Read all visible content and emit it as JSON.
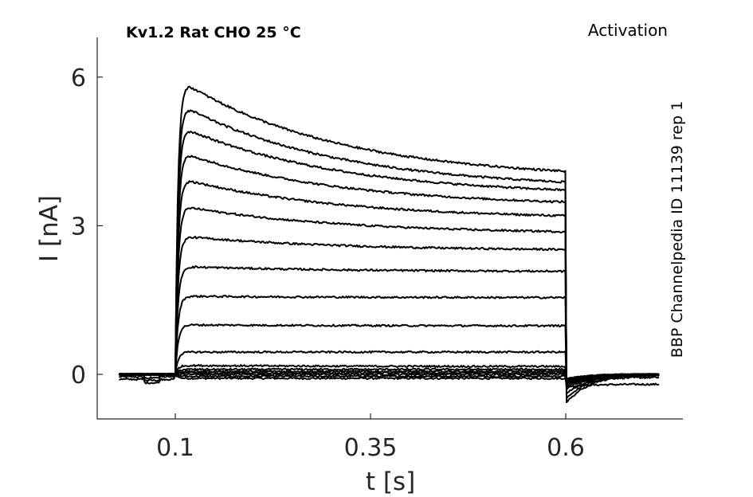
{
  "chart_data": {
    "type": "line",
    "title": "Kv1.2  Rat  CHO  25 °C",
    "annotation": "Activation",
    "side_label": "BBP Channelpedia ID 11139 rep 1",
    "xlabel": "t [s]",
    "ylabel": "I [nA]",
    "xlim": [
      0.0,
      0.75
    ],
    "ylim": [
      -0.9,
      6.8
    ],
    "x_ticks": [
      0.1,
      0.35,
      0.6
    ],
    "x_tick_labels": [
      "0.1",
      "0.35",
      "0.6"
    ],
    "y_ticks": [
      0,
      3,
      6
    ],
    "y_tick_labels": [
      "0",
      "3",
      "6"
    ],
    "grid": false,
    "pulse_start_s": 0.1,
    "pulse_end_s": 0.6,
    "sweep_end_s": 0.72,
    "series_peak_nA": [
      -0.08,
      -0.04,
      0.0,
      0.03,
      0.06,
      0.1,
      0.18,
      0.45,
      1.0,
      1.58,
      2.18,
      2.8,
      3.42,
      3.98,
      4.52,
      5.05,
      5.5,
      6.0
    ],
    "series_end_of_pulse_nA": [
      -0.08,
      -0.04,
      0.0,
      0.03,
      0.06,
      0.1,
      0.16,
      0.45,
      0.98,
      1.55,
      2.08,
      2.52,
      2.88,
      3.2,
      3.48,
      3.72,
      3.88,
      4.1
    ],
    "series_tail_min_nA": [
      -0.25,
      -0.2,
      -0.15,
      -0.1,
      -0.1,
      -0.1,
      -0.1,
      -0.1,
      -0.1,
      -0.15,
      -0.15,
      -0.2,
      -0.2,
      -0.25,
      -0.3,
      -0.4,
      -0.5,
      -0.6
    ],
    "series_tail_end_nA": [
      -0.2,
      -0.06,
      -0.02,
      0.0,
      0.0,
      0.0,
      0.0,
      0.0,
      0.0,
      0.0,
      0.0,
      0.0,
      0.0,
      0.0,
      0.0,
      0.0,
      0.0,
      0.0
    ]
  }
}
